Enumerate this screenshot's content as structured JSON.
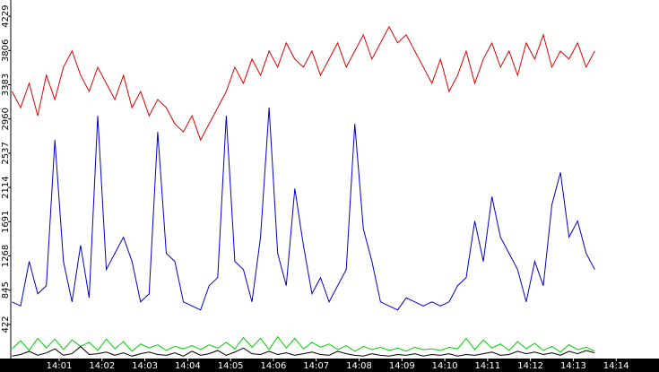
{
  "chart_data": {
    "type": "line",
    "x": [
      -0.1,
      0.1,
      0.3,
      0.5,
      0.7,
      0.9,
      1.1,
      1.3,
      1.5,
      1.7,
      1.9,
      2.1,
      2.3,
      2.5,
      2.7,
      2.9,
      3.1,
      3.3,
      3.5,
      3.7,
      3.9,
      4.1,
      4.3,
      4.5,
      4.7,
      4.9,
      5.1,
      5.3,
      5.5,
      5.7,
      5.9,
      6.1,
      6.3,
      6.5,
      6.7,
      6.9,
      7.1,
      7.3,
      7.5,
      7.7,
      7.9,
      8.1,
      8.3,
      8.5,
      8.7,
      8.9,
      9.1,
      9.3,
      9.5,
      9.7,
      9.9,
      10.1,
      10.3,
      10.5,
      10.7,
      10.9,
      11.1,
      11.3,
      11.5,
      11.7,
      11.9,
      12.1,
      12.3,
      12.5,
      12.7,
      12.9,
      13.1,
      13.3,
      13.5
    ],
    "series": [
      {
        "color": "#e00000",
        "values": [
          3300,
          3100,
          3400,
          3000,
          3500,
          3200,
          3600,
          3800,
          3500,
          3300,
          3600,
          3400,
          3200,
          3500,
          3100,
          3300,
          3000,
          3200,
          3100,
          2900,
          2800,
          3000,
          2700,
          2900,
          3100,
          3300,
          3600,
          3400,
          3700,
          3500,
          3800,
          3600,
          3900,
          3700,
          3600,
          3800,
          3500,
          3700,
          3900,
          3600,
          3800,
          4000,
          3700,
          3900,
          4100,
          3900,
          4000,
          3800,
          3600,
          3400,
          3700,
          3300,
          3500,
          3800,
          3400,
          3700,
          3900,
          3600,
          3800,
          3500,
          3900,
          3700,
          4000,
          3600,
          3800,
          3700,
          3900,
          3600,
          3800
        ]
      },
      {
        "color": "#0000c8",
        "values": [
          700,
          650,
          1200,
          800,
          900,
          2700,
          1200,
          700,
          1400,
          750,
          3000,
          1100,
          1300,
          1500,
          1200,
          700,
          800,
          2800,
          1300,
          1200,
          700,
          650,
          600,
          900,
          1000,
          3000,
          1200,
          1100,
          700,
          1500,
          3100,
          1300,
          900,
          2100,
          1400,
          800,
          1000,
          700,
          900,
          1100,
          2900,
          1600,
          1200,
          700,
          650,
          600,
          750,
          700,
          650,
          700,
          650,
          700,
          900,
          1000,
          1700,
          1200,
          2000,
          1500,
          1300,
          1100,
          700,
          1200,
          900,
          1900,
          2300,
          1500,
          1700,
          1300,
          1100
        ]
      },
      {
        "color": "#00d000",
        "values": [
          120,
          220,
          100,
          250,
          130,
          240,
          110,
          230,
          150,
          200,
          100,
          240,
          120,
          210,
          90,
          180,
          130,
          170,
          100,
          150,
          120,
          160,
          110,
          170,
          130,
          200,
          120,
          260,
          140,
          250,
          110,
          270,
          130,
          250,
          120,
          200,
          140,
          180,
          110,
          160,
          90,
          150,
          110,
          140,
          100,
          130,
          90,
          140,
          110,
          120,
          100,
          140,
          120,
          250,
          110,
          230,
          130,
          180,
          100,
          210,
          120,
          190,
          100,
          150,
          80,
          170,
          110,
          140,
          90
        ]
      },
      {
        "color": "#000000",
        "values": [
          30,
          50,
          90,
          40,
          70,
          120,
          40,
          60,
          150,
          50,
          60,
          80,
          40,
          70,
          30,
          60,
          80,
          50,
          40,
          70,
          30,
          90,
          40,
          60,
          100,
          40,
          80,
          130,
          60,
          50,
          90,
          50,
          70,
          40,
          60,
          80,
          50,
          40,
          90,
          60,
          40,
          30,
          60,
          40,
          30,
          50,
          40,
          60,
          30,
          50,
          40,
          60,
          30,
          50,
          40,
          60,
          80,
          40,
          50,
          90,
          60,
          80,
          50,
          70,
          40,
          90,
          60,
          100,
          70
        ]
      }
    ],
    "xlim": [
      -0.13,
      15.0
    ],
    "xticks": [
      {
        "value": 1,
        "label": "14:01"
      },
      {
        "value": 2,
        "label": "14:02"
      },
      {
        "value": 3,
        "label": "14:03"
      },
      {
        "value": 4,
        "label": "14:04"
      },
      {
        "value": 5,
        "label": "14:05"
      },
      {
        "value": 6,
        "label": "14:06"
      },
      {
        "value": 7,
        "label": "14:07"
      },
      {
        "value": 8,
        "label": "14:08"
      },
      {
        "value": 9,
        "label": "14:09"
      },
      {
        "value": 10,
        "label": "14:10"
      },
      {
        "value": 11,
        "label": "14:11"
      },
      {
        "value": 12,
        "label": "14:12"
      },
      {
        "value": 13,
        "label": "14:13"
      },
      {
        "value": 14,
        "label": "14:14"
      }
    ],
    "ylim": [
      0,
      4430
    ],
    "yticks": [
      422,
      845,
      1268,
      1691,
      2114,
      2537,
      2960,
      3383,
      3806,
      4229
    ]
  }
}
